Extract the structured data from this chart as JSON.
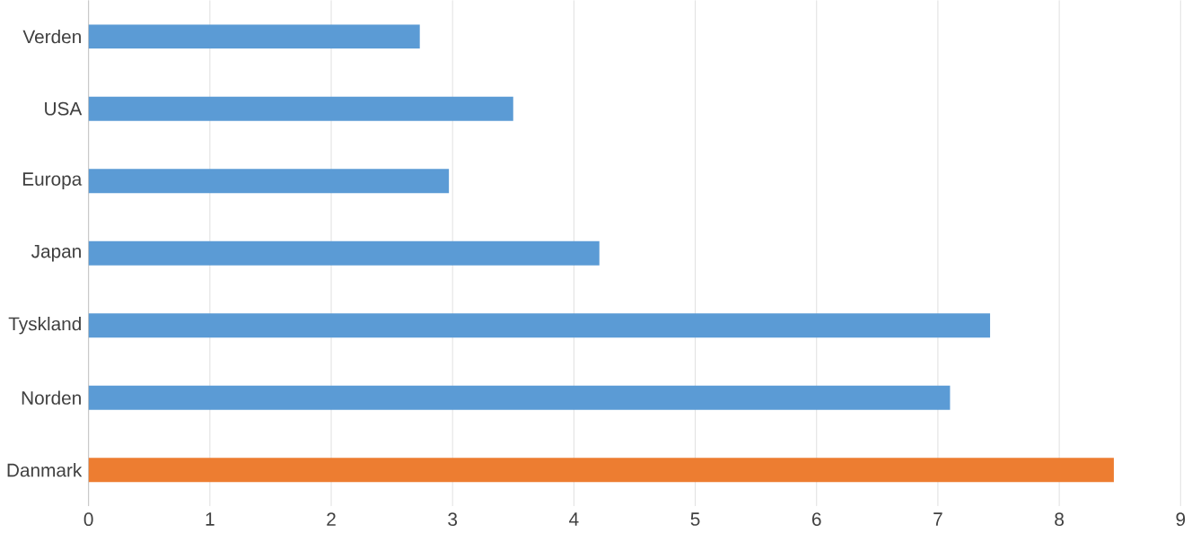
{
  "chart_data": {
    "type": "bar",
    "orientation": "horizontal",
    "categories": [
      "Verden",
      "USA",
      "Europa",
      "Japan",
      "Tyskland",
      "Norden",
      "Danmark"
    ],
    "values": [
      2.73,
      3.5,
      2.97,
      4.21,
      7.43,
      7.1,
      8.45
    ],
    "colors": [
      "#5b9bd5",
      "#5b9bd5",
      "#5b9bd5",
      "#5b9bd5",
      "#5b9bd5",
      "#5b9bd5",
      "#ed7d31"
    ],
    "xlim": [
      0,
      9
    ],
    "xticks": [
      0,
      1,
      2,
      3,
      4,
      5,
      6,
      7,
      8,
      9
    ],
    "grid": "x"
  }
}
